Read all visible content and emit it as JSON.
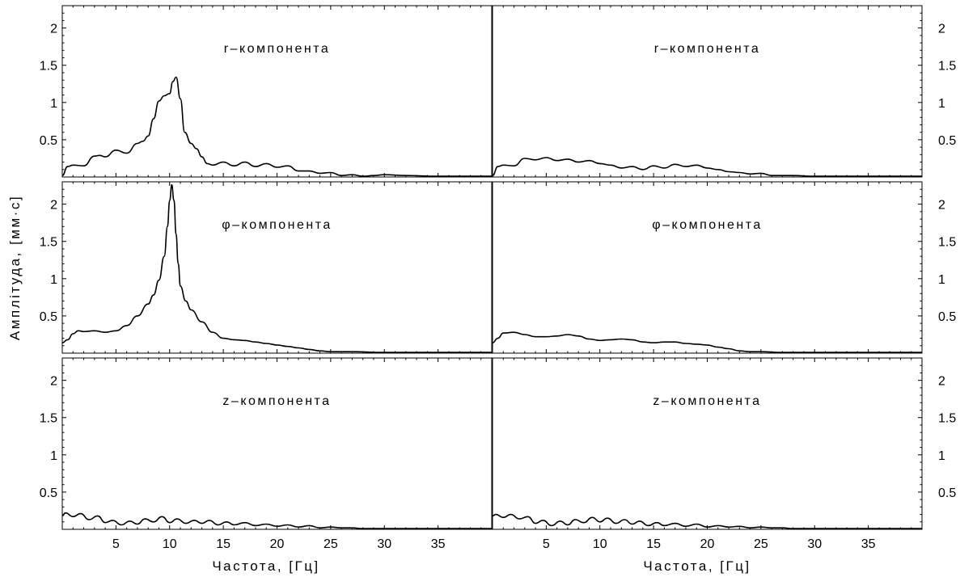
{
  "figure": {
    "ylabel": "Амплітуда, [мм·с]",
    "xlabel_left": "Частота, [Гц]",
    "xlabel_right": "Частота, [Гц]"
  },
  "chart_data": [
    {
      "type": "line",
      "panel": "row1-left",
      "title": "r–компонента",
      "xlim": [
        0,
        40
      ],
      "ylim": [
        0,
        2.3
      ],
      "xticks": [
        5,
        10,
        15,
        20,
        25,
        30,
        35
      ],
      "yticks": [
        0.5,
        1,
        1.5,
        2
      ],
      "series": [
        {
          "x": [
            0,
            0.5,
            1,
            2,
            3,
            3.5,
            4,
            5,
            6,
            7,
            7.5,
            8,
            8.5,
            9,
            9.5,
            10,
            10.3,
            10.6,
            11,
            11.4,
            12,
            12.5,
            13,
            13.5,
            14,
            15,
            16,
            17,
            18,
            19,
            20,
            21,
            22,
            23,
            24,
            25,
            26,
            27,
            28,
            29,
            30,
            32,
            35,
            38,
            40
          ],
          "y": [
            0.02,
            0.14,
            0.16,
            0.15,
            0.28,
            0.29,
            0.27,
            0.36,
            0.32,
            0.45,
            0.48,
            0.55,
            0.78,
            1.02,
            1.09,
            1.12,
            1.28,
            1.34,
            1.05,
            0.6,
            0.45,
            0.38,
            0.27,
            0.18,
            0.16,
            0.2,
            0.15,
            0.2,
            0.14,
            0.18,
            0.13,
            0.15,
            0.08,
            0.08,
            0.05,
            0.06,
            0.02,
            0.03,
            0.01,
            0.02,
            0.03,
            0.02,
            0.01,
            0.01,
            0.01
          ]
        }
      ]
    },
    {
      "type": "line",
      "panel": "row1-right",
      "title": "r–компонента",
      "xlim": [
        0,
        40
      ],
      "ylim": [
        0,
        2.3
      ],
      "xticks": [
        5,
        10,
        15,
        20,
        25,
        30,
        35
      ],
      "yticks": [
        0.5,
        1,
        1.5,
        2
      ],
      "series": [
        {
          "x": [
            0,
            0.5,
            1,
            2,
            3,
            4,
            5,
            6,
            7,
            8,
            9,
            10,
            11,
            12,
            13,
            14,
            15,
            16,
            17,
            18,
            19,
            20,
            21,
            22,
            23,
            24,
            25,
            26,
            28,
            30,
            35,
            40
          ],
          "y": [
            0.02,
            0.14,
            0.16,
            0.15,
            0.25,
            0.23,
            0.26,
            0.22,
            0.24,
            0.2,
            0.22,
            0.18,
            0.16,
            0.12,
            0.14,
            0.1,
            0.15,
            0.12,
            0.17,
            0.14,
            0.16,
            0.12,
            0.1,
            0.07,
            0.06,
            0.04,
            0.05,
            0.02,
            0.02,
            0.01,
            0.01,
            0.01
          ]
        }
      ]
    },
    {
      "type": "line",
      "panel": "row2-left",
      "title": "φ–компонента",
      "xlim": [
        0,
        40
      ],
      "ylim": [
        0,
        2.3
      ],
      "xticks": [
        5,
        10,
        15,
        20,
        25,
        30,
        35
      ],
      "yticks": [
        0.5,
        1,
        1.5,
        2
      ],
      "series": [
        {
          "x": [
            0,
            0.5,
            1,
            1.5,
            2,
            3,
            4,
            5,
            6,
            7,
            8,
            8.5,
            9,
            9.5,
            9.8,
            10,
            10.2,
            10.4,
            10.6,
            10.8,
            11,
            11.5,
            12,
            13,
            14,
            15,
            16,
            17,
            18,
            19,
            20,
            21,
            22,
            23,
            24,
            25,
            27,
            30,
            35,
            40
          ],
          "y": [
            0.14,
            0.18,
            0.26,
            0.3,
            0.29,
            0.3,
            0.28,
            0.3,
            0.37,
            0.5,
            0.66,
            0.78,
            0.98,
            1.3,
            1.7,
            2.05,
            2.26,
            2.05,
            1.6,
            1.2,
            0.9,
            0.7,
            0.58,
            0.42,
            0.28,
            0.2,
            0.18,
            0.17,
            0.15,
            0.13,
            0.11,
            0.09,
            0.07,
            0.05,
            0.03,
            0.02,
            0.02,
            0.01,
            0.01,
            0.01
          ]
        }
      ]
    },
    {
      "type": "line",
      "panel": "row2-right",
      "title": "φ–компонента",
      "xlim": [
        0,
        40
      ],
      "ylim": [
        0,
        2.3
      ],
      "xticks": [
        5,
        10,
        15,
        20,
        25,
        30,
        35
      ],
      "yticks": [
        0.5,
        1,
        1.5,
        2
      ],
      "series": [
        {
          "x": [
            0,
            0.5,
            1,
            2,
            3,
            4,
            5,
            6,
            7,
            8,
            9,
            10,
            11,
            12,
            13,
            14,
            15,
            16,
            17,
            18,
            19,
            20,
            21,
            22,
            23,
            24,
            25,
            27,
            30,
            35,
            40
          ],
          "y": [
            0.14,
            0.2,
            0.27,
            0.28,
            0.25,
            0.22,
            0.22,
            0.23,
            0.25,
            0.23,
            0.19,
            0.17,
            0.18,
            0.19,
            0.18,
            0.15,
            0.14,
            0.15,
            0.15,
            0.13,
            0.12,
            0.11,
            0.08,
            0.06,
            0.03,
            0.02,
            0.02,
            0.01,
            0.01,
            0.01,
            0.01
          ]
        }
      ]
    },
    {
      "type": "line",
      "panel": "row3-left",
      "title": "z–компонента",
      "xlim": [
        0,
        40
      ],
      "ylim": [
        0,
        2.3
      ],
      "xticks": [
        5,
        10,
        15,
        20,
        25,
        30,
        35
      ],
      "yticks": [
        0.5,
        1,
        1.5,
        2
      ],
      "series": [
        {
          "x": [
            0,
            0.3,
            1,
            1.7,
            2.5,
            3.3,
            4,
            4.7,
            5.5,
            6.3,
            7,
            7.7,
            8.5,
            9.3,
            10,
            10.7,
            11.5,
            12.3,
            13,
            13.7,
            14.5,
            15.3,
            16,
            17,
            18,
            19,
            20,
            21,
            22,
            23,
            24,
            25,
            26,
            27,
            28,
            30,
            35,
            40
          ],
          "y": [
            0.18,
            0.22,
            0.17,
            0.21,
            0.13,
            0.18,
            0.09,
            0.12,
            0.06,
            0.11,
            0.07,
            0.14,
            0.1,
            0.17,
            0.09,
            0.14,
            0.08,
            0.12,
            0.08,
            0.12,
            0.06,
            0.1,
            0.06,
            0.09,
            0.05,
            0.07,
            0.04,
            0.06,
            0.03,
            0.05,
            0.02,
            0.03,
            0.02,
            0.02,
            0.01,
            0.01,
            0.01,
            0.01
          ]
        }
      ]
    },
    {
      "type": "line",
      "panel": "row3-right",
      "title": "z–компонента",
      "xlim": [
        0,
        40
      ],
      "ylim": [
        0,
        2.3
      ],
      "xticks": [
        5,
        10,
        15,
        20,
        25,
        30,
        35
      ],
      "yticks": [
        0.5,
        1,
        1.5,
        2
      ],
      "series": [
        {
          "x": [
            0,
            0.3,
            1,
            1.7,
            2.5,
            3.3,
            4,
            4.7,
            5.5,
            6.3,
            7,
            7.7,
            8.5,
            9.3,
            10,
            10.7,
            11.5,
            12.3,
            13,
            13.7,
            14.5,
            15.3,
            16,
            17,
            18,
            19,
            20,
            21,
            22,
            23,
            24,
            25,
            26,
            27,
            28,
            30,
            35,
            40
          ],
          "y": [
            0.18,
            0.2,
            0.16,
            0.2,
            0.14,
            0.17,
            0.08,
            0.12,
            0.05,
            0.11,
            0.06,
            0.13,
            0.09,
            0.16,
            0.1,
            0.15,
            0.08,
            0.13,
            0.07,
            0.11,
            0.05,
            0.09,
            0.05,
            0.08,
            0.04,
            0.07,
            0.03,
            0.05,
            0.03,
            0.04,
            0.02,
            0.03,
            0.02,
            0.02,
            0.01,
            0.01,
            0.01,
            0.01
          ]
        }
      ]
    }
  ]
}
